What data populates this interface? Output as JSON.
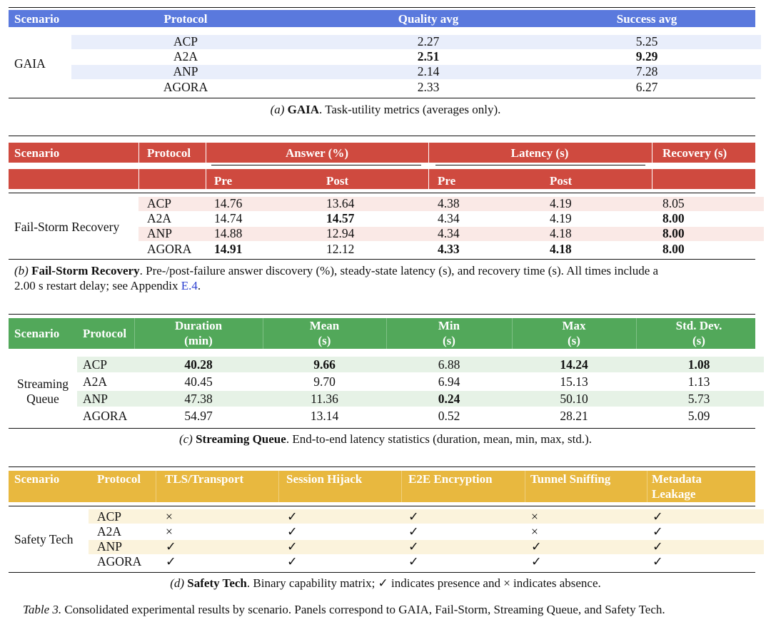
{
  "colors": {
    "blue": "#5a79dd",
    "red": "#cf4a3f",
    "green": "#52a85a",
    "gold": "#e8b83f",
    "stripe_blue": "#e9eefb",
    "stripe_red": "#fae9e6",
    "stripe_green": "#e6f2e6",
    "stripe_gold": "#fbf3dc"
  },
  "panel_a": {
    "headers": [
      "Scenario",
      "Protocol",
      "Quality avg",
      "Success avg"
    ],
    "scenario": "GAIA",
    "rows": [
      {
        "protocol": "ACP",
        "quality": "2.27",
        "success": "5.25"
      },
      {
        "protocol": "A2A",
        "quality": "2.51",
        "success": "9.29"
      },
      {
        "protocol": "ANP",
        "quality": "2.14",
        "success": "7.28"
      },
      {
        "protocol": "AGORA",
        "quality": "2.33",
        "success": "6.27"
      }
    ],
    "caption_label": "(a)",
    "caption_title": "GAIA",
    "caption_text": ". Task-utility metrics (averages only)."
  },
  "panel_b": {
    "headers": [
      "Scenario",
      "Protocol",
      "Answer (%)",
      "Latency (s)",
      "Recovery (s)"
    ],
    "subheaders": [
      "Pre",
      "Post",
      "Pre",
      "Post"
    ],
    "scenario": "Fail-Storm Recovery",
    "rows": [
      {
        "protocol": "ACP",
        "ans_pre": "14.76",
        "ans_post": "13.64",
        "lat_pre": "4.38",
        "lat_post": "4.19",
        "recovery": "8.05"
      },
      {
        "protocol": "A2A",
        "ans_pre": "14.74",
        "ans_post": "14.57",
        "lat_pre": "4.34",
        "lat_post": "4.19",
        "recovery": "8.00"
      },
      {
        "protocol": "ANP",
        "ans_pre": "14.88",
        "ans_post": "12.94",
        "lat_pre": "4.34",
        "lat_post": "4.18",
        "recovery": "8.00"
      },
      {
        "protocol": "AGORA",
        "ans_pre": "14.91",
        "ans_post": "12.12",
        "lat_pre": "4.33",
        "lat_post": "4.18",
        "recovery": "8.00"
      }
    ],
    "caption_label": "(b)",
    "caption_title": "Fail-Storm Recovery",
    "caption_text": ". Pre-/post-failure answer discovery (%), steady-state latency (s), and recovery time (s). All times include a",
    "caption_line2_pre": "2.00 s restart delay; see Appendix ",
    "caption_link": "E.4",
    "caption_line2_post": "."
  },
  "panel_c": {
    "headers": [
      "Scenario",
      "Protocol"
    ],
    "metric_headers": [
      {
        "top": "Duration",
        "bottom": "(min)"
      },
      {
        "top": "Mean",
        "bottom": "(s)"
      },
      {
        "top": "Min",
        "bottom": "(s)"
      },
      {
        "top": "Max",
        "bottom": "(s)"
      },
      {
        "top": "Std. Dev.",
        "bottom": "(s)"
      }
    ],
    "scenario_line1": "Streaming",
    "scenario_line2": "Queue",
    "rows": [
      {
        "protocol": "ACP",
        "duration": "40.28",
        "mean": "9.66",
        "min": "6.88",
        "max": "14.24",
        "std": "1.08"
      },
      {
        "protocol": "A2A",
        "duration": "40.45",
        "mean": "9.70",
        "min": "6.94",
        "max": "15.13",
        "std": "1.13"
      },
      {
        "protocol": "ANP",
        "duration": "47.38",
        "mean": "11.36",
        "min": "0.24",
        "max": "50.10",
        "std": "5.73"
      },
      {
        "protocol": "AGORA",
        "duration": "54.97",
        "mean": "13.14",
        "min": "0.52",
        "max": "28.21",
        "std": "5.09"
      }
    ],
    "caption_label": "(c)",
    "caption_title": "Streaming Queue",
    "caption_text": ". End-to-end latency statistics (duration, mean, min, max, std.)."
  },
  "panel_d": {
    "headers": [
      "Scenario",
      "Protocol",
      "TLS/Transport",
      "Session Hijack",
      "E2E Encryption",
      "Tunnel Sniffing"
    ],
    "header_meta_line1": "Metadata",
    "header_meta_line2": "Leakage",
    "scenario": "Safety Tech",
    "rows": [
      {
        "protocol": "ACP",
        "tls": "×",
        "hijack": "✓",
        "e2e": "✓",
        "sniff": "×",
        "meta": "✓"
      },
      {
        "protocol": "A2A",
        "tls": "×",
        "hijack": "✓",
        "e2e": "✓",
        "sniff": "×",
        "meta": "✓"
      },
      {
        "protocol": "ANP",
        "tls": "✓",
        "hijack": "✓",
        "e2e": "✓",
        "sniff": "✓",
        "meta": "✓"
      },
      {
        "protocol": "AGORA",
        "tls": "✓",
        "hijack": "✓",
        "e2e": "✓",
        "sniff": "✓",
        "meta": "✓"
      }
    ],
    "caption_label": "(d)",
    "caption_title": "Safety Tech",
    "caption_text": ". Binary capability matrix; ✓ indicates presence and × indicates absence."
  },
  "table_caption": {
    "label": "Table 3.",
    "text": " Consolidated experimental results by scenario. Panels correspond to GAIA, Fail-Storm, Streaming Queue, and Safety Tech."
  }
}
